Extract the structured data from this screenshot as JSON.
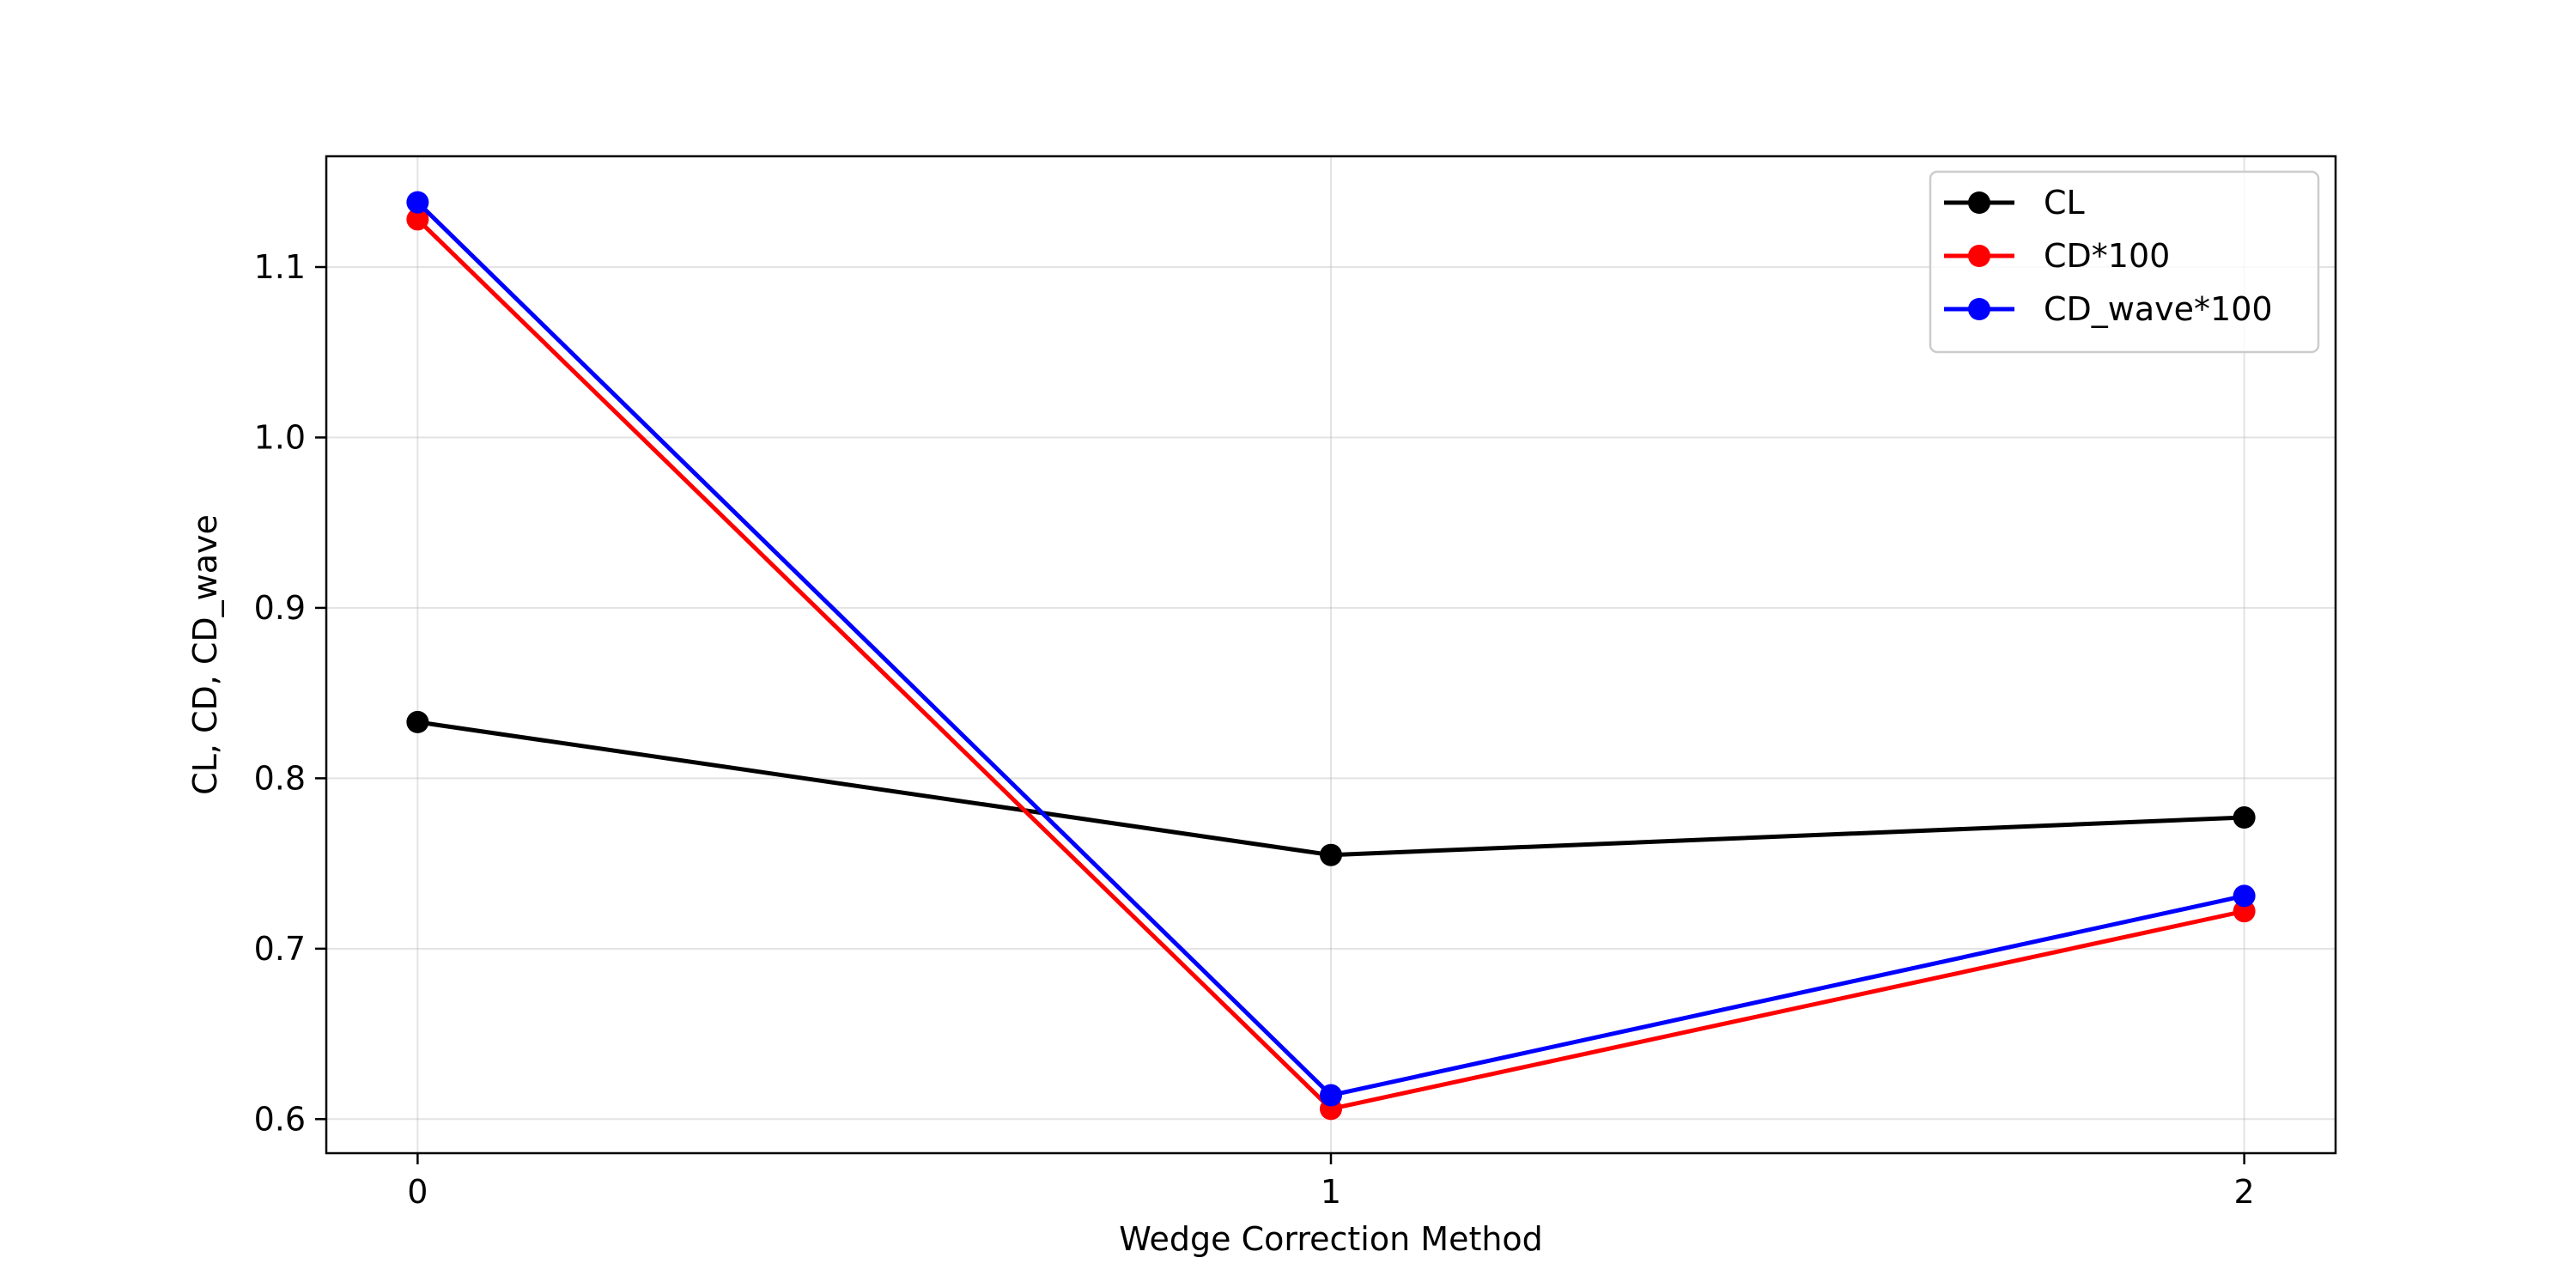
{
  "chart_data": {
    "type": "line",
    "title": "",
    "xlabel": "Wedge Correction Method",
    "ylabel": "CL, CD, CD_wave",
    "x": [
      0,
      1,
      2
    ],
    "xticks": [
      "0",
      "1",
      "2"
    ],
    "yticks": [
      "0.6",
      "0.7",
      "0.8",
      "0.9",
      "1.0",
      "1.1"
    ],
    "xlim": [
      -0.1,
      2.1
    ],
    "ylim": [
      0.58,
      1.165
    ],
    "grid": true,
    "legend_position": "top-right",
    "series": [
      {
        "name": "CL",
        "color": "#000000",
        "values": [
          0.833,
          0.755,
          0.777
        ]
      },
      {
        "name": "CD*100",
        "color": "#ff0000",
        "values": [
          1.128,
          0.606,
          0.722
        ]
      },
      {
        "name": "CD_wave*100",
        "color": "#0000ff",
        "values": [
          1.138,
          0.614,
          0.731
        ]
      }
    ]
  }
}
